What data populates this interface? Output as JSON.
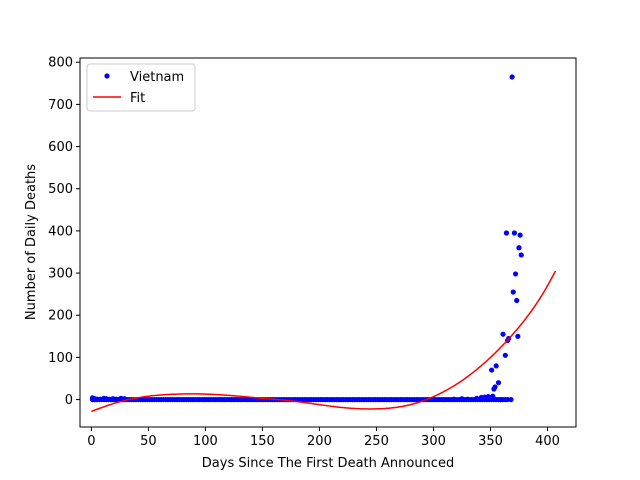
{
  "chart_data": {
    "type": "scatter",
    "title": "",
    "xlabel": "Days Since The First Death Announced",
    "ylabel": "Number of Daily Deaths",
    "xlim": [
      -10,
      425
    ],
    "ylim": [
      -65,
      810
    ],
    "xticks": [
      0,
      50,
      100,
      150,
      200,
      250,
      300,
      350,
      400
    ],
    "yticks": [
      0,
      100,
      200,
      300,
      400,
      500,
      600,
      700,
      800
    ],
    "grid": false,
    "legend_position": "top-left",
    "series": [
      {
        "name": "Vietnam",
        "kind": "scatter",
        "color": "#0000ff",
        "baseline": {
          "x_start": 1,
          "x_end": 365,
          "step": 2,
          "y": 0
        },
        "points": [
          [
            1,
            4
          ],
          [
            3,
            2
          ],
          [
            5,
            1
          ],
          [
            8,
            1
          ],
          [
            11,
            3
          ],
          [
            13,
            2
          ],
          [
            16,
            1
          ],
          [
            19,
            2
          ],
          [
            22,
            1
          ],
          [
            26,
            3
          ],
          [
            29,
            2
          ],
          [
            300,
            1
          ],
          [
            318,
            1
          ],
          [
            325,
            2
          ],
          [
            330,
            1
          ],
          [
            338,
            3
          ],
          [
            342,
            5
          ],
          [
            345,
            6
          ],
          [
            348,
            7
          ],
          [
            350,
            5
          ],
          [
            351,
            70
          ],
          [
            352,
            8
          ],
          [
            353,
            25
          ],
          [
            354,
            30
          ],
          [
            355,
            80
          ],
          [
            357,
            40
          ],
          [
            359,
            0
          ],
          [
            361,
            155
          ],
          [
            363,
            105
          ],
          [
            364,
            395
          ],
          [
            365,
            140
          ],
          [
            366,
            145
          ],
          [
            368,
            0
          ],
          [
            369,
            765
          ],
          [
            370,
            255
          ],
          [
            371,
            395
          ],
          [
            372,
            298
          ],
          [
            373,
            235
          ],
          [
            374,
            150
          ],
          [
            375,
            360
          ],
          [
            376,
            390
          ],
          [
            377,
            343
          ]
        ]
      },
      {
        "name": "Fit",
        "kind": "line",
        "color": "#ff0000",
        "x": [
          0,
          25,
          50,
          75,
          100,
          125,
          150,
          175,
          200,
          225,
          250,
          275,
          300,
          325,
          350,
          375,
          400,
          407
        ],
        "values": [
          -28,
          -5,
          8,
          13,
          13,
          9,
          3,
          -3,
          -12,
          -20,
          -22,
          -15,
          7,
          45,
          100,
          172,
          270,
          305
        ]
      }
    ]
  }
}
